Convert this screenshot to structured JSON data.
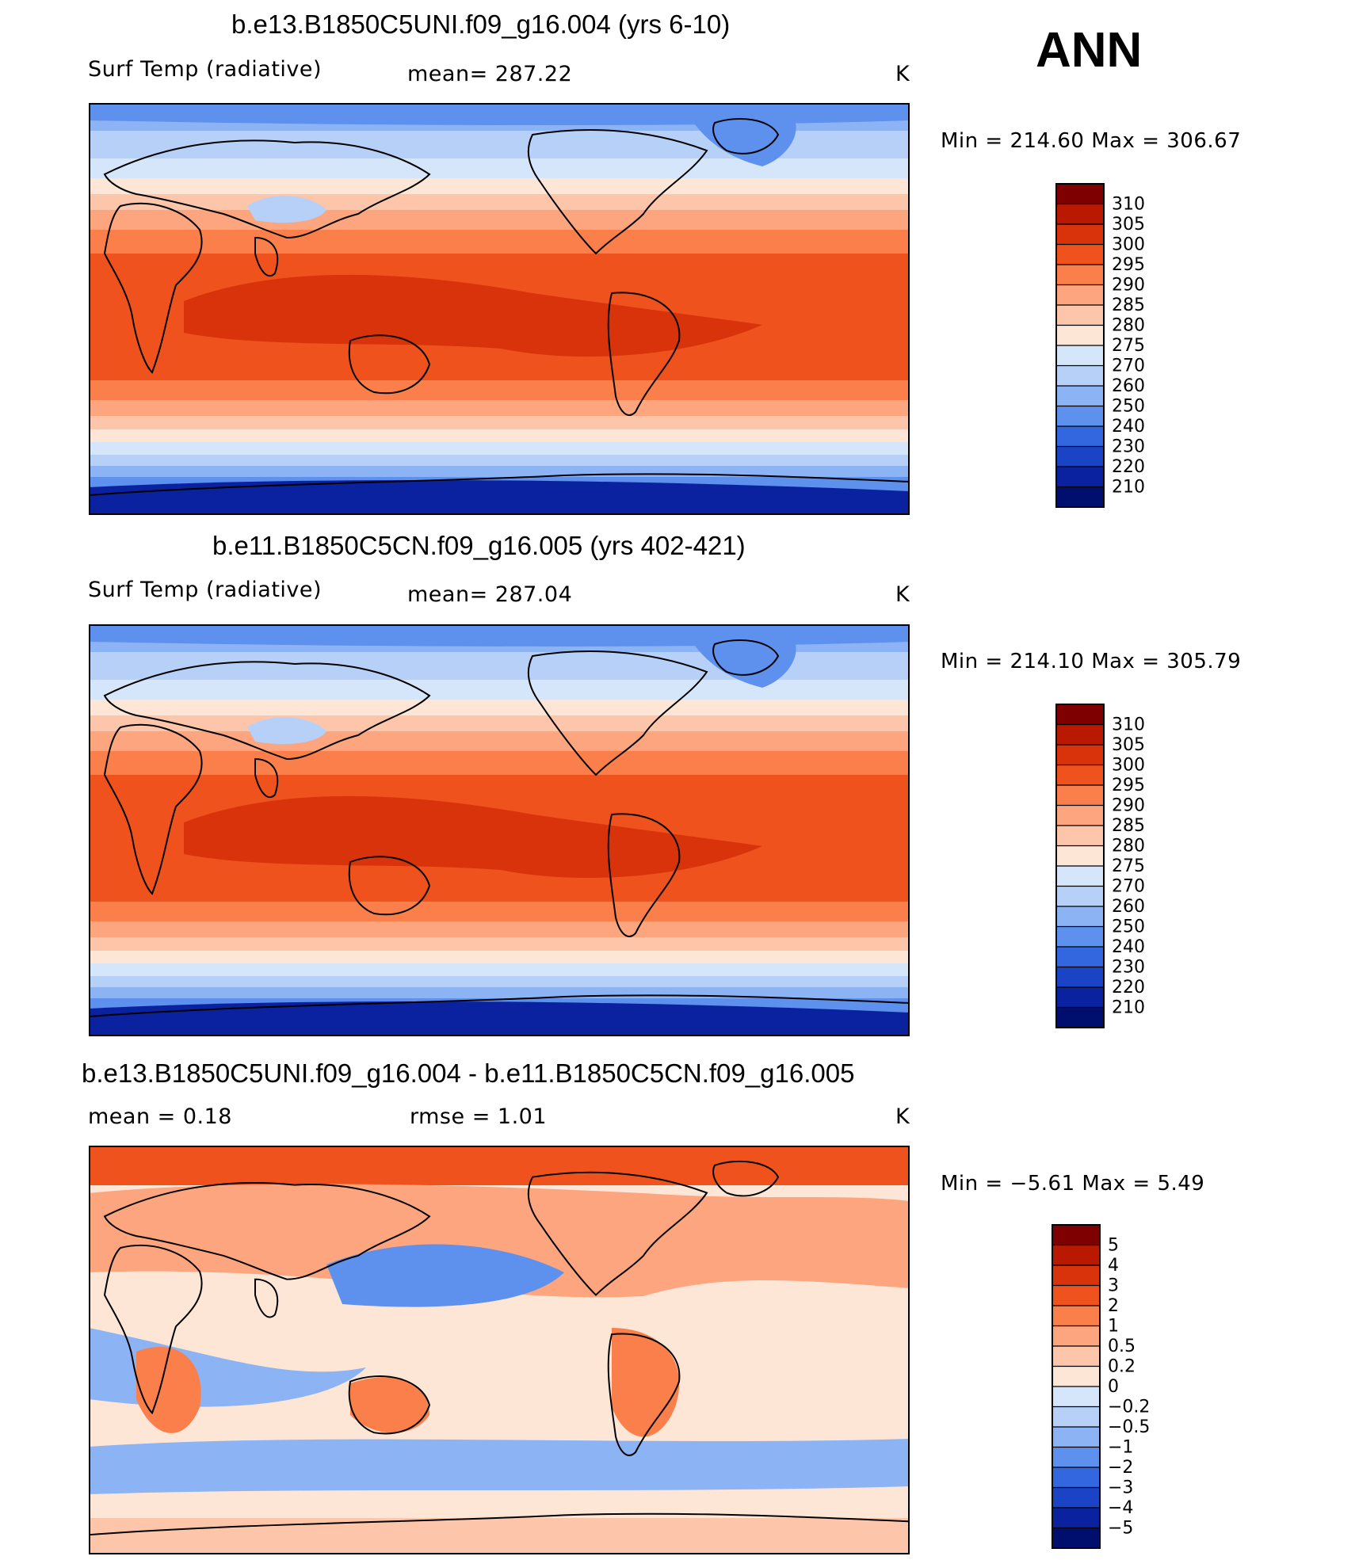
{
  "season": "ANN",
  "panels": [
    {
      "title": "b.e13.B1850C5UNI.f09_g16.004 (yrs 6-10)",
      "left_label": "Surf Temp (radiative)",
      "center_label": "mean= 287.22",
      "units": "K",
      "minmax": "Min = 214.60 Max = 306.67"
    },
    {
      "title": "b.e11.B1850C5CN.f09_g16.005 (yrs 402-421)",
      "left_label": "Surf Temp (radiative)",
      "center_label": "mean= 287.04",
      "units": "K",
      "minmax": "Min = 214.10 Max = 305.79"
    },
    {
      "title": "b.e13.B1850C5UNI.f09_g16.004 - b.e11.B1850C5CN.f09_g16.005",
      "left_label": "mean =    0.18",
      "center_label": "rmse =    1.01",
      "units": "K",
      "minmax": "Min =   −5.61 Max =     5.49"
    }
  ],
  "chart_data": [
    {
      "type": "heatmap",
      "title": "b.e13.B1850C5UNI.f09_g16.004 (yrs 6-10)",
      "variable": "Surf Temp (radiative)",
      "units": "K",
      "mean": 287.22,
      "min": 214.6,
      "max": 306.67,
      "colorbar": {
        "levels": [
          "310",
          "305",
          "300",
          "295",
          "290",
          "285",
          "280",
          "275",
          "270",
          "260",
          "250",
          "240",
          "230",
          "220",
          "210"
        ],
        "colors": [
          "#7f0000",
          "#b81900",
          "#d8330b",
          "#f0521e",
          "#fb7f4a",
          "#fda57e",
          "#fdc6aa",
          "#fde6d6",
          "#d6e6fa",
          "#b6d0f8",
          "#8cb3f4",
          "#5e90ee",
          "#3367e0",
          "#1a43c6",
          "#0a229f",
          "#000e6e"
        ]
      }
    },
    {
      "type": "heatmap",
      "title": "b.e11.B1850C5CN.f09_g16.005 (yrs 402-421)",
      "variable": "Surf Temp (radiative)",
      "units": "K",
      "mean": 287.04,
      "min": 214.1,
      "max": 305.79,
      "colorbar": {
        "levels": [
          "310",
          "305",
          "300",
          "295",
          "290",
          "285",
          "280",
          "275",
          "270",
          "260",
          "250",
          "240",
          "230",
          "220",
          "210"
        ],
        "colors": [
          "#7f0000",
          "#b81900",
          "#d8330b",
          "#f0521e",
          "#fb7f4a",
          "#fda57e",
          "#fdc6aa",
          "#fde6d6",
          "#d6e6fa",
          "#b6d0f8",
          "#8cb3f4",
          "#5e90ee",
          "#3367e0",
          "#1a43c6",
          "#0a229f",
          "#000e6e"
        ]
      }
    },
    {
      "type": "heatmap",
      "title": "b.e13.B1850C5UNI.f09_g16.004 - b.e11.B1850C5CN.f09_g16.005",
      "variable": "difference",
      "units": "K",
      "mean": 0.18,
      "rmse": 1.01,
      "min": -5.61,
      "max": 5.49,
      "colorbar": {
        "levels": [
          "5",
          "4",
          "3",
          "2",
          "1",
          "0.5",
          "0.2",
          "0",
          "−0.2",
          "−0.5",
          "−1",
          "−2",
          "−3",
          "−4",
          "−5"
        ],
        "colors": [
          "#7f0000",
          "#b81900",
          "#d8330b",
          "#f0521e",
          "#fb7f4a",
          "#fda57e",
          "#fdc6aa",
          "#fde6d6",
          "#d6e6fa",
          "#b6d0f8",
          "#8cb3f4",
          "#5e90ee",
          "#3367e0",
          "#1a43c6",
          "#0a229f",
          "#000e6e"
        ]
      }
    }
  ]
}
